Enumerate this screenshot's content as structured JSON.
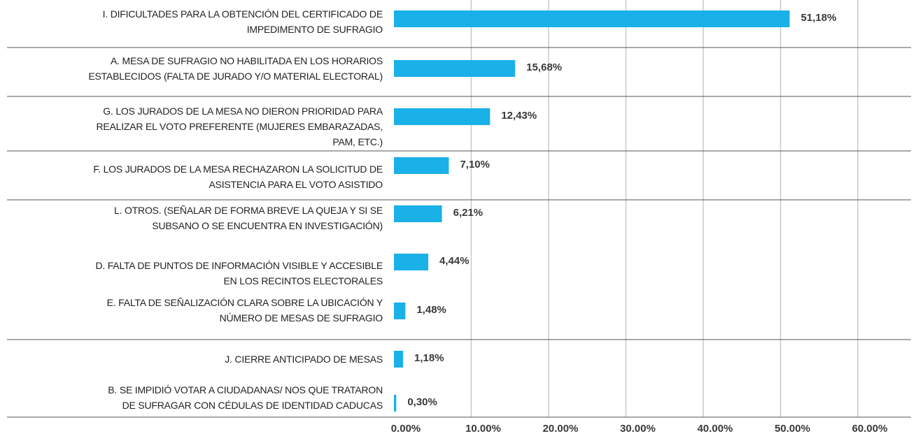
{
  "chart_data": {
    "type": "hbar",
    "categories": [
      "I. DIFICULTADES PARA LA OBTENCIÓN DEL CERTIFICADO DE\nIMPEDIMENTO DE SUFRAGIO",
      "A. MESA DE SUFRAGIO NO HABILITADA EN LOS HORARIOS\nESTABLECIDOS (FALTA DE JURADO Y/O MATERIAL ELECTORAL)",
      "G. LOS JURADOS DE LA MESA NO DIERON PRIORIDAD PARA\nREALIZAR EL VOTO PREFERENTE (MUJERES EMBARAZADAS,\nPAM, ETC.)",
      "F. LOS JURADOS DE LA MESA RECHAZARON LA SOLICITUD DE\nASISTENCIA PARA EL VOTO ASISTIDO",
      "L. OTROS. (SEÑALAR DE FORMA BREVE LA QUEJA Y SI SE\nSUBSANO O SE ENCUENTRA EN INVESTIGACIÓN)",
      "D. FALTA DE PUNTOS DE INFORMACIÓN VISIBLE Y ACCESIBLE\nEN LOS RECINTOS ELECTORALES",
      "E. FALTA DE SEÑALIZACIÓN CLARA SOBRE LA UBICACIÓN Y\nNÚMERO DE MESAS DE SUFRAGIO",
      "J. CIERRE ANTICIPADO DE MESAS",
      "B. SE IMPIDIÓ VOTAR A CIUDADANAS/ NOS QUE TRATARON\nDE SUFRAGAR CON CÉDULAS DE IDENTIDAD CADUCAS"
    ],
    "values": [
      51.18,
      15.68,
      12.43,
      7.1,
      6.21,
      4.44,
      1.48,
      1.18,
      0.3
    ],
    "value_labels": [
      "51,18%",
      "15,68%",
      "12,43%",
      "7,10%",
      "6,21%",
      "4,44%",
      "1,48%",
      "1,18%",
      "0,30%"
    ],
    "color": "#1ab0e8",
    "xlim": [
      0,
      60
    ],
    "xticks": [
      {
        "value": 0,
        "label": "0.00%"
      },
      {
        "value": 10,
        "label": "10.00%"
      },
      {
        "value": 20,
        "label": "20.00%"
      },
      {
        "value": 30,
        "label": "30.00%"
      },
      {
        "value": 40,
        "label": "40.00%"
      },
      {
        "value": 50,
        "label": "50.00%"
      },
      {
        "value": 60,
        "label": "60.00%"
      }
    ],
    "grid": true
  }
}
